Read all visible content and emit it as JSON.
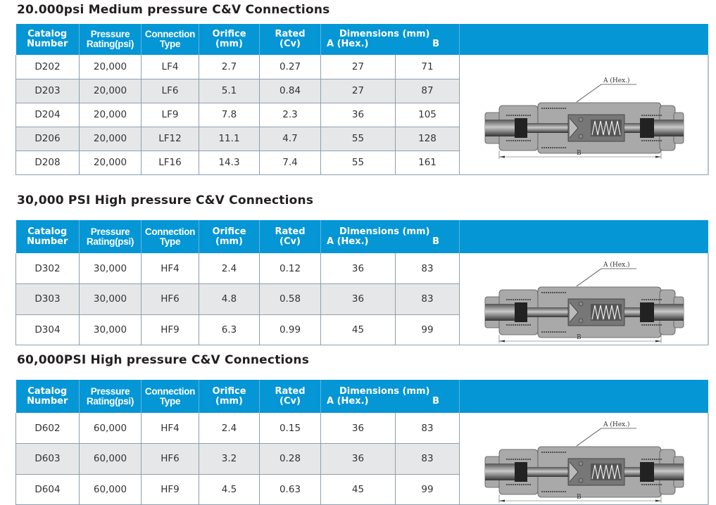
{
  "headers": {
    "catalog": [
      "Catalog",
      "Number"
    ],
    "pressure": [
      "Pressure",
      "Rating(psi)"
    ],
    "connection": [
      "Connection",
      "Type"
    ],
    "orifice": [
      "Orifice",
      "(mm)"
    ],
    "rated": [
      "Rated",
      "(Cv)"
    ],
    "dimensions": "Dimensions (mm)",
    "dim_a": "A (Hex.)",
    "dim_b": "B"
  },
  "diagram_labels": {
    "a": "A (Hex.)",
    "b": "B"
  },
  "colors": {
    "header_bg": "#0596d6",
    "alt_row": "#e6e7e8",
    "grid": "#8e9fae"
  },
  "sections": [
    {
      "title": "20.000psi Medium pressure  C&V Connections",
      "rows": [
        [
          "D202",
          "20,000",
          "LF4",
          "2.7",
          "0.27",
          "27",
          "71"
        ],
        [
          "D203",
          "20,000",
          "LF6",
          "5.1",
          "0.84",
          "27",
          "87"
        ],
        [
          "D204",
          "20,000",
          "LF9",
          "7.8",
          "2.3",
          "36",
          "105"
        ],
        [
          "D206",
          "20,000",
          "LF12",
          "11.1",
          "4.7",
          "55",
          "128"
        ],
        [
          "D208",
          "20,000",
          "LF16",
          "14.3",
          "7.4",
          "55",
          "161"
        ]
      ]
    },
    {
      "title": "30,000 PSI  High pressure  C&V Connections",
      "rows": [
        [
          "D302",
          "30,000",
          "HF4",
          "2.4",
          "0.12",
          "36",
          "83"
        ],
        [
          "D303",
          "30,000",
          "HF6",
          "4.8",
          "0.58",
          "36",
          "83"
        ],
        [
          "D304",
          "30,000",
          "HF9",
          "6.3",
          "0.99",
          "45",
          "99"
        ]
      ]
    },
    {
      "title": "60,000PSI  High pressure C&V Connections",
      "rows": [
        [
          "D602",
          "60,000",
          "HF4",
          "2.4",
          "0.15",
          "36",
          "83"
        ],
        [
          "D603",
          "60,000",
          "HF6",
          "3.2",
          "0.28",
          "36",
          "83"
        ],
        [
          "D604",
          "60,000",
          "HF9",
          "4.5",
          "0.63",
          "45",
          "99"
        ]
      ]
    }
  ]
}
